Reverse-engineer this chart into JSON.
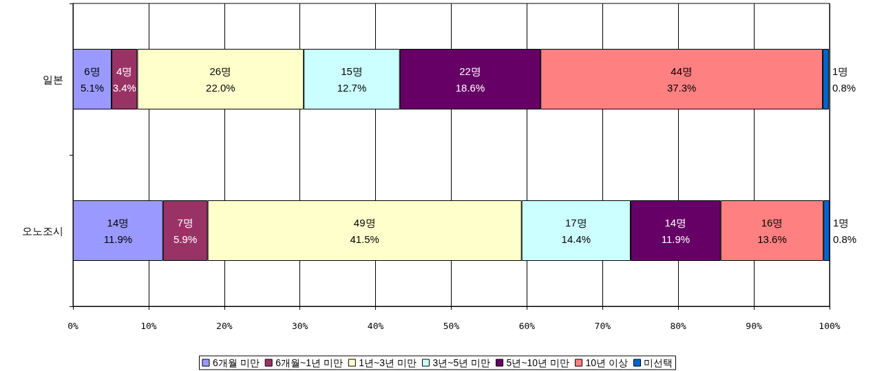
{
  "chart_data": {
    "type": "bar",
    "orientation": "horizontal",
    "stacked": true,
    "categories": [
      "일본",
      "오노조시"
    ],
    "series": [
      {
        "name": "6개월 미만",
        "color": "#9999ff",
        "values": [
          5.1,
          11.9
        ],
        "value_labels": [
          "6명\n5.1%",
          "14명\n11.9%"
        ]
      },
      {
        "name": "6개월~1년 미만",
        "color": "#993366",
        "values": [
          3.4,
          5.9
        ],
        "value_labels": [
          "4명\n3.4%",
          "7명\n5.9%"
        ]
      },
      {
        "name": "1년~3년 미만",
        "color": "#ffffcc",
        "values": [
          22.0,
          41.5
        ],
        "value_labels": [
          "26명\n22.0%",
          "49명\n41.5%"
        ]
      },
      {
        "name": "3년~5년 미만",
        "color": "#ccffff",
        "values": [
          12.7,
          14.4
        ],
        "value_labels": [
          "15명\n12.7%",
          "17명\n14.4%"
        ]
      },
      {
        "name": "5년~10년 미만",
        "color": "#660066",
        "values": [
          18.6,
          11.9
        ],
        "value_labels": [
          "22명\n18.6%",
          "14명\n11.9%"
        ]
      },
      {
        "name": "10년 이상",
        "color": "#ff8080",
        "values": [
          37.3,
          13.6
        ],
        "value_labels": [
          "44명\n37.3%",
          "16명\n13.6%"
        ]
      },
      {
        "name": "미선택",
        "color": "#0066cc",
        "values": [
          0.8,
          0.8
        ],
        "value_labels": [
          "1명\n0.8%",
          "1명\n0.8%"
        ]
      }
    ],
    "xlim": [
      0,
      100
    ],
    "xticks": [
      {
        "value": 0,
        "label": "0%"
      },
      {
        "value": 10,
        "label": "10%"
      },
      {
        "value": 20,
        "label": "20%"
      },
      {
        "value": 30,
        "label": "30%"
      },
      {
        "value": 40,
        "label": "40%"
      },
      {
        "value": 50,
        "label": "50%"
      },
      {
        "value": 60,
        "label": "60%"
      },
      {
        "value": 70,
        "label": "70%"
      },
      {
        "value": 80,
        "label": "80%"
      },
      {
        "value": 90,
        "label": "90%"
      },
      {
        "value": 100,
        "label": "100%"
      }
    ],
    "grid": "x",
    "legend": "bottom"
  }
}
